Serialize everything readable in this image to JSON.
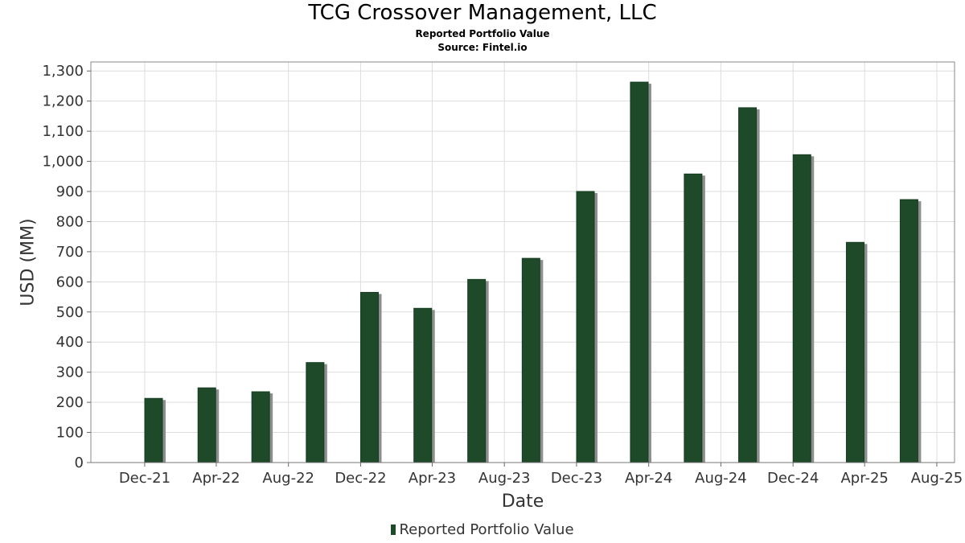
{
  "title": "TCG Crossover Management, LLC",
  "subtitle": "Reported Portfolio Value",
  "source": "Source: Fintel.io",
  "colors": {
    "bar": "#1e4a2a",
    "shadow": "#8e8e8e",
    "grid": "#dddddd",
    "frame": "#888888"
  },
  "chart_data": {
    "type": "bar",
    "title": "TCG Crossover Management, LLC",
    "subtitle": "Reported Portfolio Value",
    "xlabel": "Date",
    "ylabel": "USD (MM)",
    "ylim": [
      0,
      1330
    ],
    "yticks": [
      0,
      100,
      200,
      300,
      400,
      500,
      600,
      700,
      800,
      900,
      1000,
      1100,
      1200,
      1300
    ],
    "ytick_labels": [
      "0",
      "100",
      "200",
      "300",
      "400",
      "500",
      "600",
      "700",
      "800",
      "900",
      "1,000",
      "1,100",
      "1,200",
      "1,300"
    ],
    "xlim": [
      "2021-09-01",
      "2025-08-31"
    ],
    "xticks": [
      "2021-12-01",
      "2022-04-01",
      "2022-08-01",
      "2022-12-01",
      "2023-04-01",
      "2023-08-01",
      "2023-12-01",
      "2024-04-01",
      "2024-08-01",
      "2024-12-01",
      "2025-04-01",
      "2025-08-01"
    ],
    "xtick_labels": [
      "Dec-21",
      "Apr-22",
      "Aug-22",
      "Dec-22",
      "Apr-23",
      "Aug-23",
      "Dec-23",
      "Apr-24",
      "Aug-24",
      "Dec-24",
      "Apr-25",
      "Aug-25"
    ],
    "grid": true,
    "legend_position": "bottom",
    "series": [
      {
        "name": "Reported Portfolio Value",
        "x": [
          "2021-12-31",
          "2022-03-31",
          "2022-06-30",
          "2022-09-30",
          "2022-12-31",
          "2023-03-31",
          "2023-06-30",
          "2023-09-30",
          "2023-12-31",
          "2024-03-31",
          "2024-06-30",
          "2024-09-30",
          "2024-12-31",
          "2025-03-31",
          "2025-06-30"
        ],
        "values": [
          213,
          248,
          235,
          332,
          565,
          512,
          608,
          678,
          900,
          1263,
          958,
          1178,
          1022,
          731,
          873
        ]
      }
    ]
  }
}
